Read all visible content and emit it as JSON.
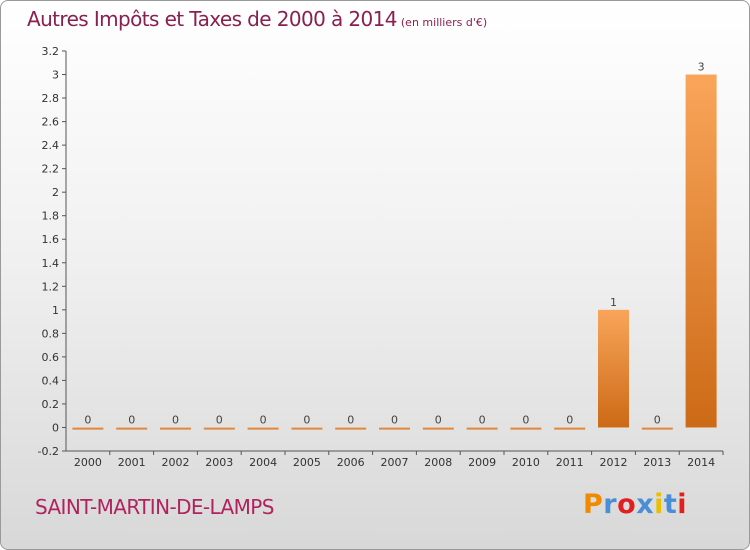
{
  "header": {
    "title": "Autres Impôts et Taxes de 2000 à 2014",
    "unit": "(en milliers d'€)"
  },
  "footer": {
    "place": "SAINT-MARTIN-DE-LAMPS",
    "logo_text": "Proxiti",
    "logo_colors": [
      "#f08a00",
      "#4a8ed8",
      "#e02020",
      "#4a8ed8",
      "#e8c000",
      "#4a8ed8",
      "#e02020"
    ]
  },
  "colors": {
    "title": "#8a2050",
    "place": "#b0235f",
    "bar_light": "#f9a55a",
    "bar_dark": "#cc6a16"
  },
  "chart_data": {
    "type": "bar",
    "categories": [
      "2000",
      "2001",
      "2002",
      "2003",
      "2004",
      "2005",
      "2006",
      "2007",
      "2008",
      "2009",
      "2010",
      "2011",
      "2012",
      "2013",
      "2014"
    ],
    "values": [
      0,
      0,
      0,
      0,
      0,
      0,
      0,
      0,
      0,
      0,
      0,
      0,
      1,
      0,
      3
    ],
    "data_labels": [
      "0",
      "0",
      "0",
      "0",
      "0",
      "0",
      "0",
      "0",
      "0",
      "0",
      "0",
      "0",
      "1",
      "0",
      "3"
    ],
    "y_ticks": [
      "-0.2",
      "0",
      "0.2",
      "0.4",
      "0.6",
      "0.8",
      "1",
      "1.2",
      "1.4",
      "1.6",
      "1.8",
      "2",
      "2.2",
      "2.4",
      "2.6",
      "2.8",
      "3",
      "3.2"
    ],
    "ylim": [
      -0.2,
      3.2
    ],
    "grid": false,
    "legend": "none"
  }
}
